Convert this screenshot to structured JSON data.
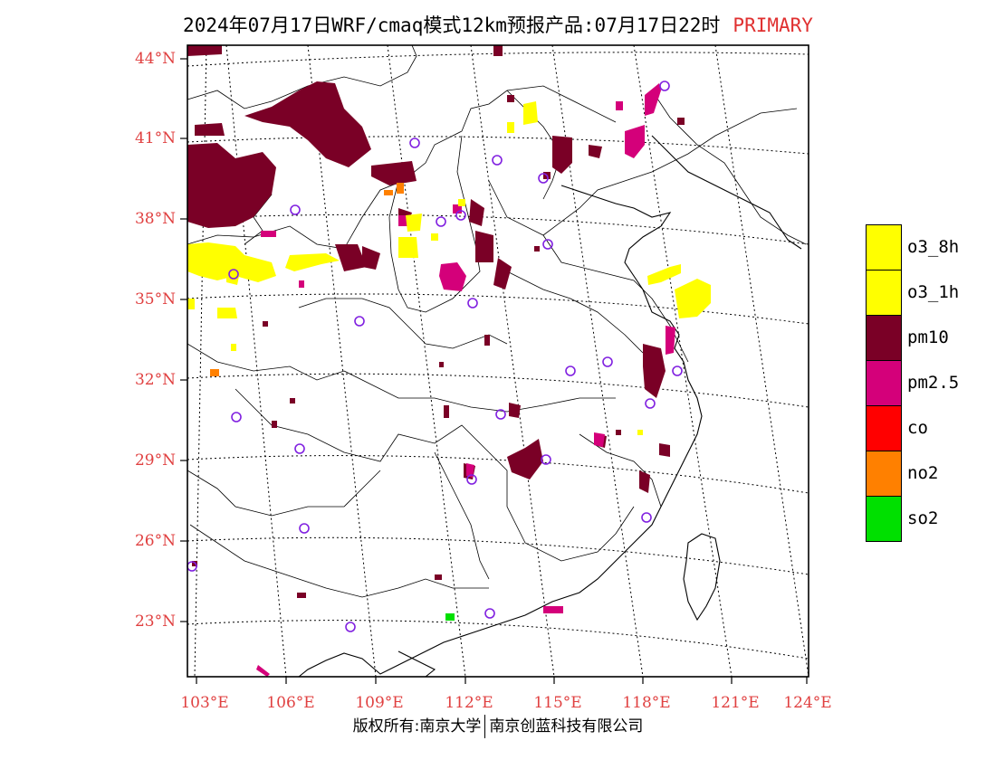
{
  "title": {
    "text": "2024年07月17日WRF/cmaq模式12km预报产品:07月17日22时",
    "tag": "PRIMARY"
  },
  "lat_labels": [
    "44°N",
    "41°N",
    "38°N",
    "35°N",
    "32°N",
    "29°N",
    "26°N",
    "23°N"
  ],
  "lon_labels": [
    "103°E",
    "106°E",
    "109°E",
    "112°E",
    "115°E",
    "118°E",
    "121°E",
    "124°E"
  ],
  "legend": [
    {
      "label": "o3_8h",
      "color": "#ffff00"
    },
    {
      "label": "o3_1h",
      "color": "#ffff00"
    },
    {
      "label": "pm10",
      "color": "#7a0026"
    },
    {
      "label": "pm2.5",
      "color": "#d4007a"
    },
    {
      "label": "co",
      "color": "#ff0000"
    },
    {
      "label": "no2",
      "color": "#ff8000"
    },
    {
      "label": "so2",
      "color": "#00e000"
    }
  ],
  "footer": {
    "left": "版权所有:南京大学",
    "right": "南京创蓝科技有限公司"
  }
}
